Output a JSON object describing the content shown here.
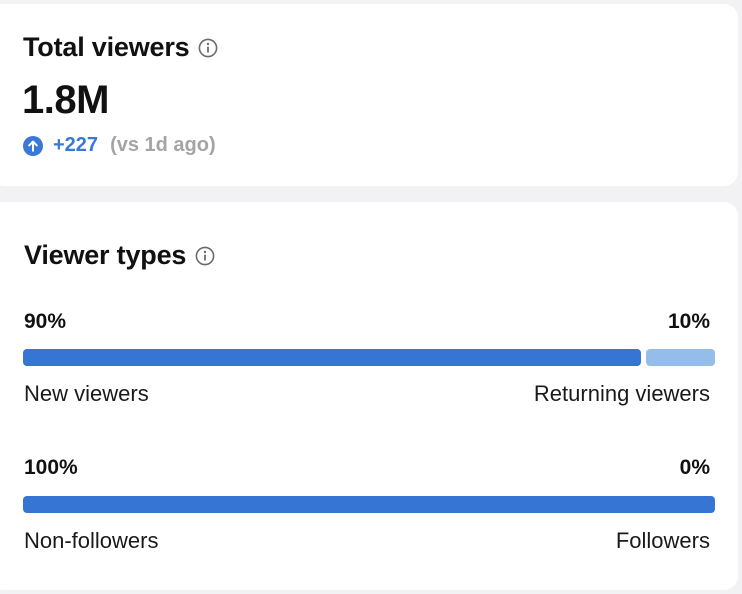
{
  "total_viewers": {
    "title": "Total viewers",
    "value": "1.8M",
    "change_value": "+227",
    "change_compare": "(vs 1d ago)",
    "colors": {
      "accent": "#3a78d6",
      "muted": "#a4a4a8"
    },
    "icons": {
      "info": "info-icon",
      "change": "arrow-up-circle-icon"
    }
  },
  "viewer_types": {
    "title": "Viewer types",
    "icons": {
      "info": "info-icon"
    },
    "breakdowns": [
      {
        "left_percent": "90%",
        "right_percent": "10%",
        "left_label": "New viewers",
        "right_label": "Returning viewers",
        "left_share": 0.9,
        "right_share": 0.1
      },
      {
        "left_percent": "100%",
        "right_percent": "0%",
        "left_label": "Non-followers",
        "right_label": "Followers",
        "left_share": 1.0,
        "right_share": 0.0
      }
    ],
    "colors": {
      "primary": "#3675d3",
      "secondary": "#95bdea"
    }
  }
}
